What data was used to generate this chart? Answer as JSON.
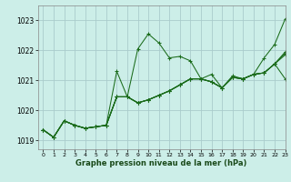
{
  "xlabel": "Graphe pression niveau de la mer (hPa)",
  "bg_color": "#cceee8",
  "grid_color": "#aacccc",
  "line_color": "#1a6b1a",
  "xlim": [
    -0.5,
    23
  ],
  "ylim": [
    1018.7,
    1023.5
  ],
  "yticks": [
    1019,
    1020,
    1021,
    1022,
    1023
  ],
  "xticks": [
    0,
    1,
    2,
    3,
    4,
    5,
    6,
    7,
    8,
    9,
    10,
    11,
    12,
    13,
    14,
    15,
    16,
    17,
    18,
    19,
    20,
    21,
    22,
    23
  ],
  "series": [
    [
      1019.35,
      1019.1,
      1019.65,
      1019.5,
      1019.4,
      1019.45,
      1019.5,
      1021.3,
      1020.45,
      1022.05,
      1022.55,
      1022.25,
      1021.75,
      1021.8,
      1021.65,
      1021.05,
      1020.95,
      1020.75,
      1021.1,
      1021.05,
      1021.2,
      1021.75,
      1022.2,
      1023.05
    ],
    [
      1019.35,
      1019.1,
      1019.65,
      1019.5,
      1019.4,
      1019.45,
      1019.5,
      1020.45,
      1020.45,
      1020.25,
      1020.35,
      1020.5,
      1020.65,
      1020.85,
      1021.05,
      1021.05,
      1020.95,
      1020.75,
      1021.1,
      1021.05,
      1021.2,
      1021.25,
      1021.55,
      1021.95
    ],
    [
      1019.35,
      1019.1,
      1019.65,
      1019.5,
      1019.4,
      1019.45,
      1019.5,
      1020.45,
      1020.45,
      1020.25,
      1020.35,
      1020.5,
      1020.65,
      1020.85,
      1021.05,
      1021.05,
      1021.2,
      1020.75,
      1021.15,
      1021.05,
      1021.2,
      1021.25,
      1021.55,
      1021.9
    ],
    [
      1019.35,
      1019.1,
      1019.65,
      1019.5,
      1019.4,
      1019.45,
      1019.5,
      1020.45,
      1020.45,
      1020.25,
      1020.35,
      1020.5,
      1020.65,
      1020.85,
      1021.05,
      1021.05,
      1020.95,
      1020.75,
      1021.1,
      1021.05,
      1021.2,
      1021.25,
      1021.55,
      1021.05
    ],
    [
      1019.35,
      1019.1,
      1019.65,
      1019.5,
      1019.4,
      1019.45,
      1019.5,
      1020.45,
      1020.45,
      1020.25,
      1020.35,
      1020.5,
      1020.65,
      1020.85,
      1021.05,
      1021.05,
      1020.95,
      1020.75,
      1021.1,
      1021.05,
      1021.2,
      1021.25,
      1021.55,
      1021.85
    ]
  ]
}
